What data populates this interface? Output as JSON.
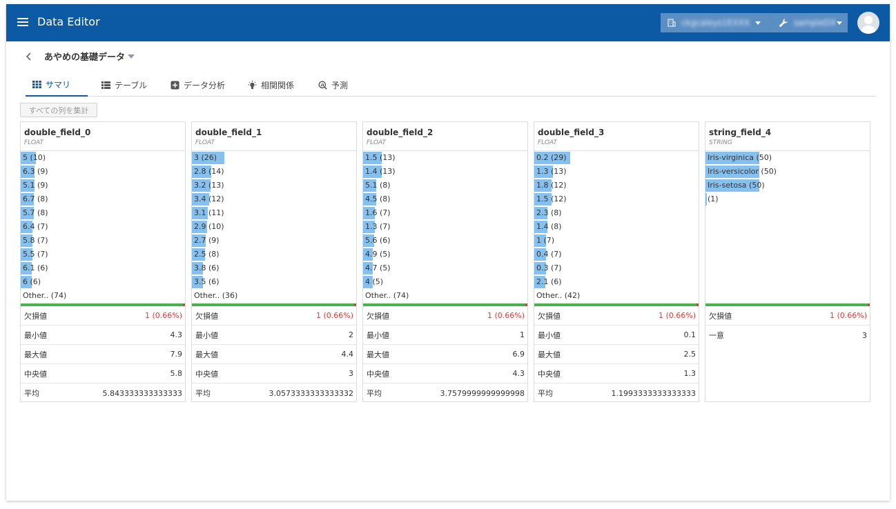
{
  "app": {
    "title": "Data Editor"
  },
  "header": {
    "breadcrumbs": [
      {
        "label": "ckgcaleys1EXXX",
        "icon": "building-icon"
      },
      {
        "label": "sampleDX",
        "icon": "wrench-icon"
      }
    ]
  },
  "page": {
    "title": "あやめの基礎データ"
  },
  "tabs": [
    {
      "label": "サマリ",
      "icon": "grid-icon",
      "active": true
    },
    {
      "label": "テーブル",
      "icon": "list-icon",
      "active": false
    },
    {
      "label": "データ分析",
      "icon": "plus-square-icon",
      "active": false
    },
    {
      "label": "相関関係",
      "icon": "lightbulb-icon",
      "active": false
    },
    {
      "label": "予測",
      "icon": "chart-search-icon",
      "active": false
    }
  ],
  "aggregate_button": "すべての列を集計",
  "colors": {
    "accent": "#0b5aa3",
    "bar": "#86c0ee",
    "missing": "#e53935",
    "valid": "#4caf50"
  },
  "columns": [
    {
      "name": "double_field_0",
      "type": "FLOAT",
      "freq": [
        {
          "label": "5 (10)",
          "count": 10
        },
        {
          "label": "6.3 (9)",
          "count": 9
        },
        {
          "label": "5.1 (9)",
          "count": 9
        },
        {
          "label": "6.7 (8)",
          "count": 8
        },
        {
          "label": "5.7 (8)",
          "count": 8
        },
        {
          "label": "6.4 (7)",
          "count": 7
        },
        {
          "label": "5.8 (7)",
          "count": 7
        },
        {
          "label": "5.5 (7)",
          "count": 7
        },
        {
          "label": "6.1 (6)",
          "count": 6
        },
        {
          "label": "6 (6)",
          "count": 6
        }
      ],
      "other": "Other.. (74)",
      "stats": [
        {
          "label": "欠損値",
          "value": "1 (0.66%)",
          "warn": true
        },
        {
          "label": "最小値",
          "value": "4.3"
        },
        {
          "label": "最大値",
          "value": "7.9"
        },
        {
          "label": "中央値",
          "value": "5.8"
        },
        {
          "label": "平均",
          "value": "5.843333333333333"
        }
      ]
    },
    {
      "name": "double_field_1",
      "type": "FLOAT",
      "freq": [
        {
          "label": "3 (26)",
          "count": 26
        },
        {
          "label": "2.8 (14)",
          "count": 14
        },
        {
          "label": "3.2 (13)",
          "count": 13
        },
        {
          "label": "3.4 (12)",
          "count": 12
        },
        {
          "label": "3.1 (11)",
          "count": 11
        },
        {
          "label": "2.9 (10)",
          "count": 10
        },
        {
          "label": "2.7 (9)",
          "count": 9
        },
        {
          "label": "2.5 (8)",
          "count": 8
        },
        {
          "label": "3.8 (6)",
          "count": 6
        },
        {
          "label": "3.5 (6)",
          "count": 6
        }
      ],
      "other": "Other.. (36)",
      "stats": [
        {
          "label": "欠損値",
          "value": "1 (0.66%)",
          "warn": true
        },
        {
          "label": "最小値",
          "value": "2"
        },
        {
          "label": "最大値",
          "value": "4.4"
        },
        {
          "label": "中央値",
          "value": "3"
        },
        {
          "label": "平均",
          "value": "3.0573333333333332"
        }
      ]
    },
    {
      "name": "double_field_2",
      "type": "FLOAT",
      "freq": [
        {
          "label": "1.5 (13)",
          "count": 13
        },
        {
          "label": "1.4 (13)",
          "count": 13
        },
        {
          "label": "5.1 (8)",
          "count": 8
        },
        {
          "label": "4.5 (8)",
          "count": 8
        },
        {
          "label": "1.6 (7)",
          "count": 7
        },
        {
          "label": "1.3 (7)",
          "count": 7
        },
        {
          "label": "5.6 (6)",
          "count": 6
        },
        {
          "label": "4.9 (5)",
          "count": 5
        },
        {
          "label": "4.7 (5)",
          "count": 5
        },
        {
          "label": "4 (5)",
          "count": 5
        }
      ],
      "other": "Other.. (74)",
      "stats": [
        {
          "label": "欠損値",
          "value": "1 (0.66%)",
          "warn": true
        },
        {
          "label": "最小値",
          "value": "1"
        },
        {
          "label": "最大値",
          "value": "6.9"
        },
        {
          "label": "中央値",
          "value": "4.3"
        },
        {
          "label": "平均",
          "value": "3.7579999999999998"
        }
      ]
    },
    {
      "name": "double_field_3",
      "type": "FLOAT",
      "freq": [
        {
          "label": "0.2 (29)",
          "count": 29
        },
        {
          "label": "1.3 (13)",
          "count": 13
        },
        {
          "label": "1.8 (12)",
          "count": 12
        },
        {
          "label": "1.5 (12)",
          "count": 12
        },
        {
          "label": "2.3 (8)",
          "count": 8
        },
        {
          "label": "1.4 (8)",
          "count": 8
        },
        {
          "label": "1 (7)",
          "count": 7
        },
        {
          "label": "0.4 (7)",
          "count": 7
        },
        {
          "label": "0.3 (7)",
          "count": 7
        },
        {
          "label": "2.1 (6)",
          "count": 6
        }
      ],
      "other": "Other.. (42)",
      "stats": [
        {
          "label": "欠損値",
          "value": "1 (0.66%)",
          "warn": true
        },
        {
          "label": "最小値",
          "value": "0.1"
        },
        {
          "label": "最大値",
          "value": "2.5"
        },
        {
          "label": "中央値",
          "value": "1.3"
        },
        {
          "label": "平均",
          "value": "1.1993333333333333"
        }
      ]
    },
    {
      "name": "string_field_4",
      "type": "STRING",
      "freq": [
        {
          "label": "Iris-virginica (50)",
          "count": 50
        },
        {
          "label": "Iris-versicolor (50)",
          "count": 50
        },
        {
          "label": "Iris-setosa (50)",
          "count": 50
        },
        {
          "label": "(1)",
          "count": 1
        }
      ],
      "other": "",
      "stats": [
        {
          "label": "欠損値",
          "value": "1 (0.66%)",
          "warn": true
        },
        {
          "label": "一意",
          "value": "3"
        }
      ]
    }
  ]
}
